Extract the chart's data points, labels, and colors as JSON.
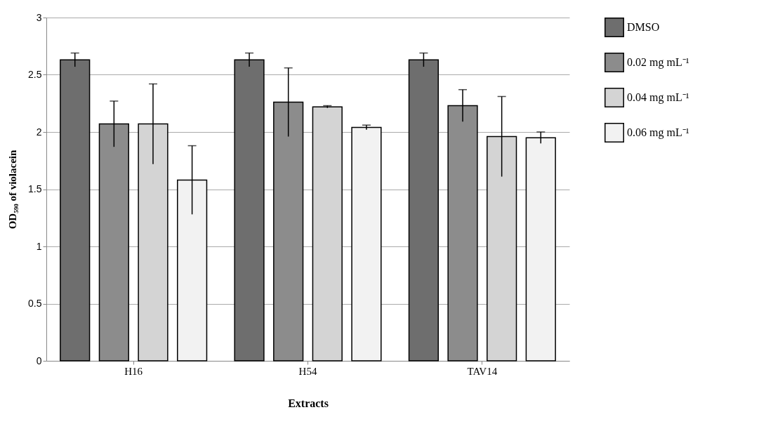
{
  "chart_data": {
    "type": "bar",
    "xlabel": "Extracts",
    "ylabel": "OD₅₉₀ of violacein",
    "categories": [
      "H16",
      "H54",
      "TAV14"
    ],
    "series": [
      {
        "name": "DMSO",
        "color": "#6e6e6e",
        "values": [
          2.63,
          2.63,
          2.63
        ],
        "errors": [
          0.06,
          0.06,
          0.06
        ]
      },
      {
        "name": "0.02 mg mL⁻¹",
        "color": "#8c8c8c",
        "values": [
          2.07,
          2.26,
          2.23
        ],
        "errors": [
          0.2,
          0.3,
          0.14
        ]
      },
      {
        "name": "0.04 mg mL⁻¹",
        "color": "#d4d4d4",
        "values": [
          2.07,
          2.22,
          1.96
        ],
        "errors": [
          0.35,
          0.01,
          0.35
        ]
      },
      {
        "name": "0.06 mg mL⁻¹",
        "color": "#f2f2f2",
        "values": [
          1.58,
          2.04,
          1.95
        ],
        "errors": [
          0.3,
          0.02,
          0.05
        ]
      }
    ],
    "ylim": [
      0,
      3
    ],
    "yticks": [
      0,
      0.5,
      1,
      1.5,
      2,
      2.5,
      3
    ],
    "grid": "y",
    "legend": "right"
  }
}
